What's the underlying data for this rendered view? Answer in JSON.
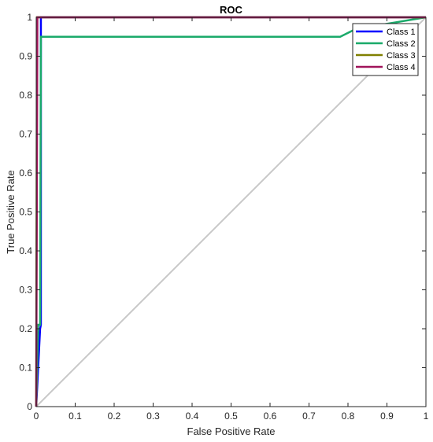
{
  "chart_data": {
    "type": "line",
    "title": "ROC",
    "xlabel": "False Positive Rate",
    "ylabel": "True Positive Rate",
    "xlim": [
      0,
      1
    ],
    "ylim": [
      0,
      1
    ],
    "xticks": [
      0,
      0.1,
      0.2,
      0.3,
      0.4,
      0.5,
      0.6,
      0.7,
      0.8,
      0.9,
      1
    ],
    "yticks": [
      0,
      0.1,
      0.2,
      0.3,
      0.4,
      0.5,
      0.6,
      0.7,
      0.8,
      0.9,
      1
    ],
    "xtick_labels": [
      "0",
      "0.1",
      "0.2",
      "0.3",
      "0.4",
      "0.5",
      "0.6",
      "0.7",
      "0.8",
      "0.9",
      "1"
    ],
    "ytick_labels": [
      "0",
      "0.1",
      "0.2",
      "0.3",
      "0.4",
      "0.5",
      "0.6",
      "0.7",
      "0.8",
      "0.9",
      "1"
    ],
    "grid": false,
    "legend_position": "top-right",
    "reference_line": {
      "x": [
        0,
        1
      ],
      "y": [
        0,
        1
      ],
      "color": "#c8c8c8"
    },
    "series": [
      {
        "name": "Class 1",
        "color": "#0000ff",
        "x": [
          0,
          0.01,
          0.012,
          0.012,
          1
        ],
        "y": [
          0,
          0.2,
          0.21,
          1,
          1
        ]
      },
      {
        "name": "Class 2",
        "color": "#1aaa6a",
        "x": [
          0,
          0.005,
          0.01,
          0.012,
          0.78,
          0.82,
          1
        ],
        "y": [
          0,
          0.21,
          0.21,
          0.95,
          0.95,
          0.97,
          1
        ]
      },
      {
        "name": "Class 3",
        "color": "#808000",
        "x": [
          0,
          0.002,
          1
        ],
        "y": [
          0,
          1,
          1
        ]
      },
      {
        "name": "Class 4",
        "color": "#a0145a",
        "x": [
          0,
          0.003,
          1
        ],
        "y": [
          0,
          1,
          1
        ]
      }
    ]
  }
}
